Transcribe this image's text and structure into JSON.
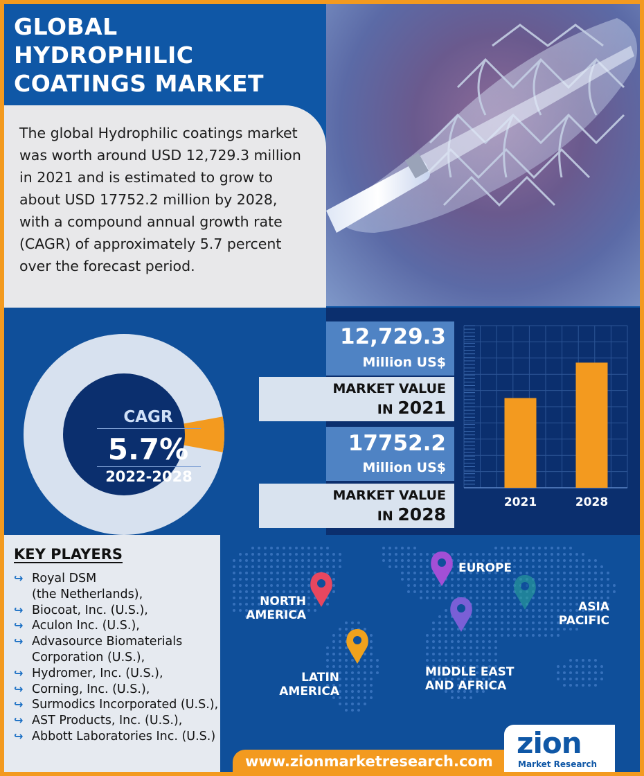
{
  "title": {
    "line1": "GLOBAL",
    "line2": "HYDROPHILIC",
    "line3": "COATINGS MARKET"
  },
  "intro": "The global Hydrophilic coatings market was worth around USD 12,729.3 million in 2021 and is estimated to grow to about USD 17752.2 million by 2028, with a compound annual growth rate (CAGR) of approximately 5.7 percent over the forecast period.",
  "cagr": {
    "label": "CAGR",
    "value": "5.7%",
    "period": "2022-2028",
    "ring_fill_fraction": 0.057
  },
  "stats": [
    {
      "value": "12,729.3",
      "unit": "Million US$",
      "label": "MARKET VALUE",
      "prefix": "IN",
      "year": "2021"
    },
    {
      "value": "17752.2",
      "unit": "Million US$",
      "label": "MARKET VALUE",
      "prefix": "IN",
      "year": "2028"
    }
  ],
  "chart_data": {
    "type": "bar",
    "categories": [
      "2021",
      "2028"
    ],
    "values": [
      12729.3,
      17752.2
    ],
    "ylim": [
      0,
      23000
    ],
    "grid": true,
    "bar_color": "#f39a1f"
  },
  "key_players": {
    "title": "KEY PLAYERS",
    "items": [
      {
        "line1": "Royal DSM",
        "line2": "(the Netherlands),"
      },
      {
        "line1": "Biocoat, Inc. (U.S.),",
        "line2": ""
      },
      {
        "line1": "Aculon Inc. (U.S.),",
        "line2": ""
      },
      {
        "line1": "Advasource Biomaterials",
        "line2": "Corporation (U.S.),"
      },
      {
        "line1": "Hydromer, Inc. (U.S.),",
        "line2": ""
      },
      {
        "line1": "Corning, Inc. (U.S.),",
        "line2": ""
      },
      {
        "line1": "Surmodics Incorporated (U.S.),",
        "line2": ""
      },
      {
        "line1": "AST Products, Inc. (U.S.),",
        "line2": ""
      },
      {
        "line1": "Abbott Laboratories Inc. (U.S.)",
        "line2": ""
      }
    ]
  },
  "regions": {
    "north_america": {
      "line1": "NORTH",
      "line2": "AMERICA",
      "pin_color": "#e8475f"
    },
    "europe": {
      "line1": "EUROPE",
      "line2": "",
      "pin_color": "#a24fd6"
    },
    "asia_pacific": {
      "line1": "ASIA",
      "line2": "PACIFIC",
      "pin_color": "#2aa39a"
    },
    "latin_america": {
      "line1": "LATIN",
      "line2": "AMERICA",
      "pin_color": "#f0a21d"
    },
    "mea": {
      "line1": "MIDDLE EAST",
      "line2": "AND AFRICA",
      "pin_color": "#7a5fd6"
    }
  },
  "footer": {
    "url": "www.zionmarketresearch.com",
    "logo_main": "zion",
    "logo_sub": "Market Research"
  },
  "colors": {
    "brand_blue": "#0f57a6",
    "navy": "#0b2f6e",
    "orange": "#f39a1f",
    "light_gray": "#e8e8ea"
  }
}
